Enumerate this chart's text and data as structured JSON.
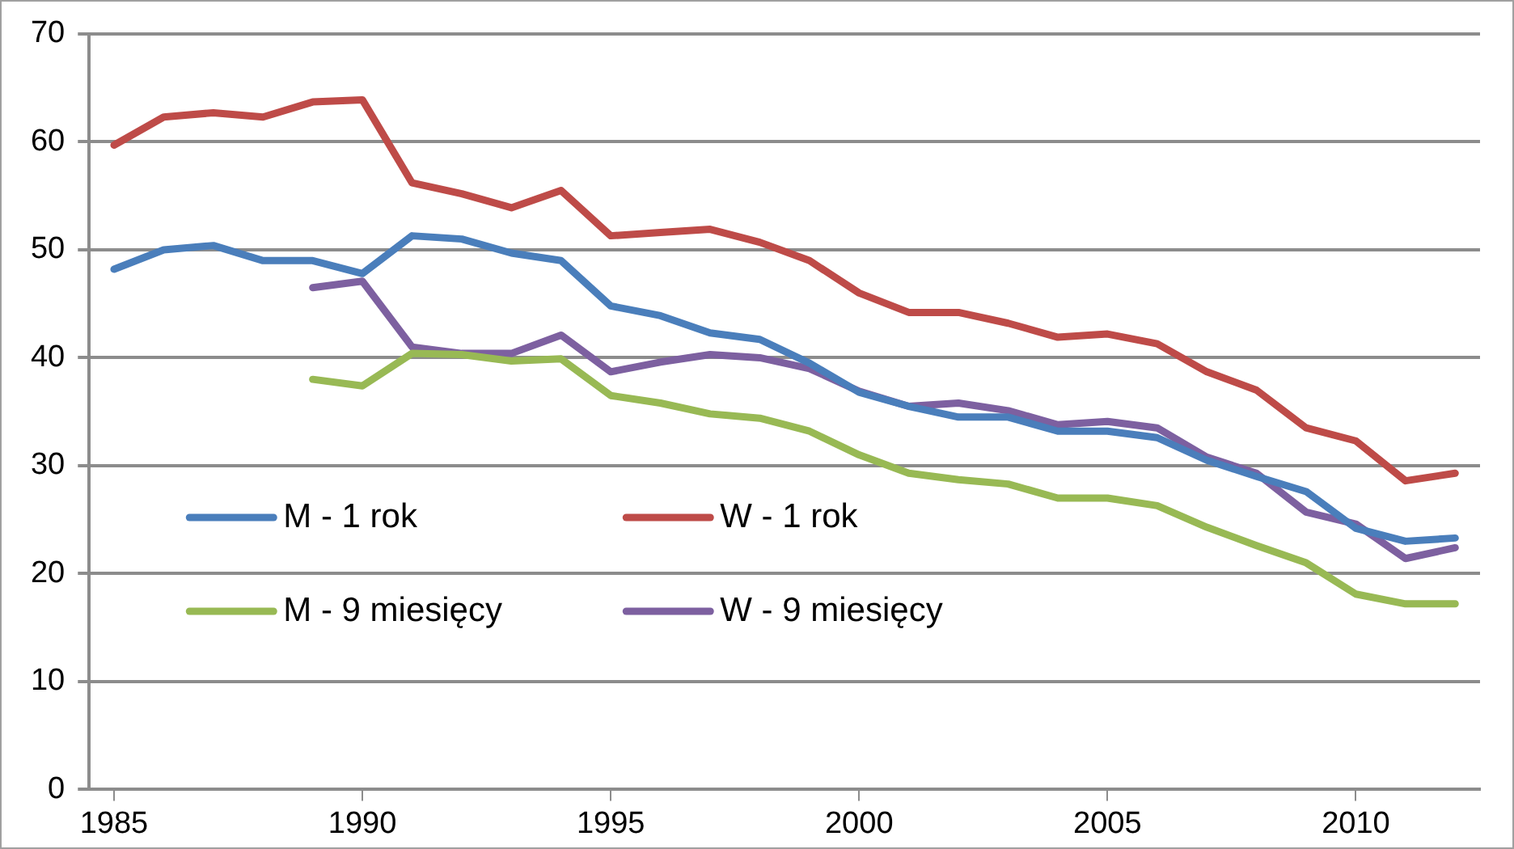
{
  "chart_data": {
    "type": "line",
    "x": [
      1985,
      1986,
      1987,
      1988,
      1989,
      1990,
      1991,
      1992,
      1993,
      1994,
      1995,
      1996,
      1997,
      1998,
      1999,
      2000,
      2001,
      2002,
      2003,
      2004,
      2005,
      2006,
      2007,
      2008,
      2009,
      2010,
      2011,
      2012
    ],
    "series": [
      {
        "name": "M - 1 rok",
        "color": "#4a7ebb",
        "values": [
          48.2,
          50,
          50.4,
          49,
          49,
          47.8,
          51.3,
          51,
          49.7,
          49,
          44.8,
          43.9,
          42.3,
          41.7,
          39.5,
          36.8,
          35.5,
          34.5,
          34.5,
          33.2,
          33.2,
          32.6,
          30.5,
          29,
          27.6,
          24.2,
          23,
          23.3
        ]
      },
      {
        "name": "W - 1 rok",
        "color": "#be4b48",
        "values": [
          59.7,
          62.3,
          62.7,
          62.3,
          63.7,
          63.9,
          56.2,
          55.2,
          53.9,
          55.5,
          51.3,
          51.6,
          51.9,
          50.7,
          49,
          46,
          44.2,
          44.2,
          43.2,
          41.9,
          42.2,
          41.3,
          38.7,
          37,
          33.5,
          32.3,
          28.6,
          29.3
        ]
      },
      {
        "name": "M - 9 miesięcy",
        "color": "#98b954",
        "values": [
          null,
          null,
          null,
          null,
          38,
          37.4,
          40.4,
          40.3,
          39.7,
          39.9,
          36.5,
          35.8,
          34.8,
          34.4,
          33.2,
          31,
          29.3,
          28.7,
          28.3,
          27,
          27,
          26.3,
          24.3,
          22.6,
          21,
          18.1,
          17.2,
          17.2
        ]
      },
      {
        "name": "W - 9 miesięcy",
        "color": "#7d60a0",
        "values": [
          null,
          null,
          null,
          null,
          46.5,
          47.1,
          41,
          40.4,
          40.4,
          42.1,
          38.7,
          39.6,
          40.3,
          40,
          39,
          36.9,
          35.5,
          35.8,
          35.1,
          33.8,
          34.1,
          33.5,
          30.8,
          29.3,
          25.7,
          24.6,
          21.4,
          22.4
        ]
      }
    ],
    "xlim": [
      1984.5,
      2012.5
    ],
    "xticks": [
      1985,
      1990,
      1995,
      2000,
      2005,
      2010
    ],
    "ylim": [
      0,
      70
    ],
    "yticks": [
      0,
      10,
      20,
      30,
      40,
      50,
      60,
      70
    ],
    "grid": "y",
    "legend": "bottom left",
    "marker": "none",
    "line_style": "solid"
  }
}
